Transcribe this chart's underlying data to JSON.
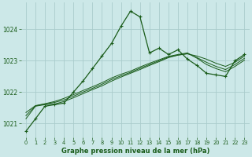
{
  "background_color": "#cce8e8",
  "grid_color": "#aacccc",
  "line_color": "#1a5c1a",
  "xlabel": "Graphe pression niveau de la mer (hPa)",
  "xlim": [
    -0.5,
    23.5
  ],
  "ylim": [
    1020.55,
    1024.85
  ],
  "yticks": [
    1021,
    1022,
    1023,
    1024
  ],
  "xticks": [
    0,
    1,
    2,
    3,
    4,
    5,
    6,
    7,
    8,
    9,
    10,
    11,
    12,
    13,
    14,
    15,
    16,
    17,
    18,
    19,
    20,
    21,
    22,
    23
  ],
  "line1_y": [
    1020.75,
    1021.15,
    1021.55,
    1021.6,
    1021.65,
    1022.0,
    1022.35,
    1022.75,
    1023.15,
    1023.55,
    1024.1,
    1024.58,
    1024.4,
    1023.25,
    1023.4,
    1023.2,
    1023.35,
    1023.05,
    1022.85,
    1022.6,
    1022.55,
    1022.5,
    1023.0,
    1023.2
  ],
  "line2_y": [
    1021.15,
    1021.55,
    1021.6,
    1021.62,
    1021.7,
    1021.82,
    1021.95,
    1022.08,
    1022.2,
    1022.35,
    1022.48,
    1022.6,
    1022.72,
    1022.85,
    1022.97,
    1023.1,
    1023.18,
    1023.22,
    1023.15,
    1023.05,
    1022.92,
    1022.82,
    1022.95,
    1023.15
  ],
  "line3_y": [
    1021.25,
    1021.56,
    1021.62,
    1021.67,
    1021.75,
    1021.87,
    1022.0,
    1022.12,
    1022.25,
    1022.4,
    1022.52,
    1022.63,
    1022.76,
    1022.88,
    1023.0,
    1023.12,
    1023.18,
    1023.23,
    1023.1,
    1022.95,
    1022.82,
    1022.72,
    1022.88,
    1023.08
  ],
  "line4_y": [
    1021.35,
    1021.57,
    1021.63,
    1021.7,
    1021.8,
    1021.92,
    1022.05,
    1022.17,
    1022.3,
    1022.45,
    1022.57,
    1022.67,
    1022.8,
    1022.92,
    1023.03,
    1023.14,
    1023.2,
    1023.25,
    1023.08,
    1022.88,
    1022.75,
    1022.65,
    1022.82,
    1023.02
  ]
}
